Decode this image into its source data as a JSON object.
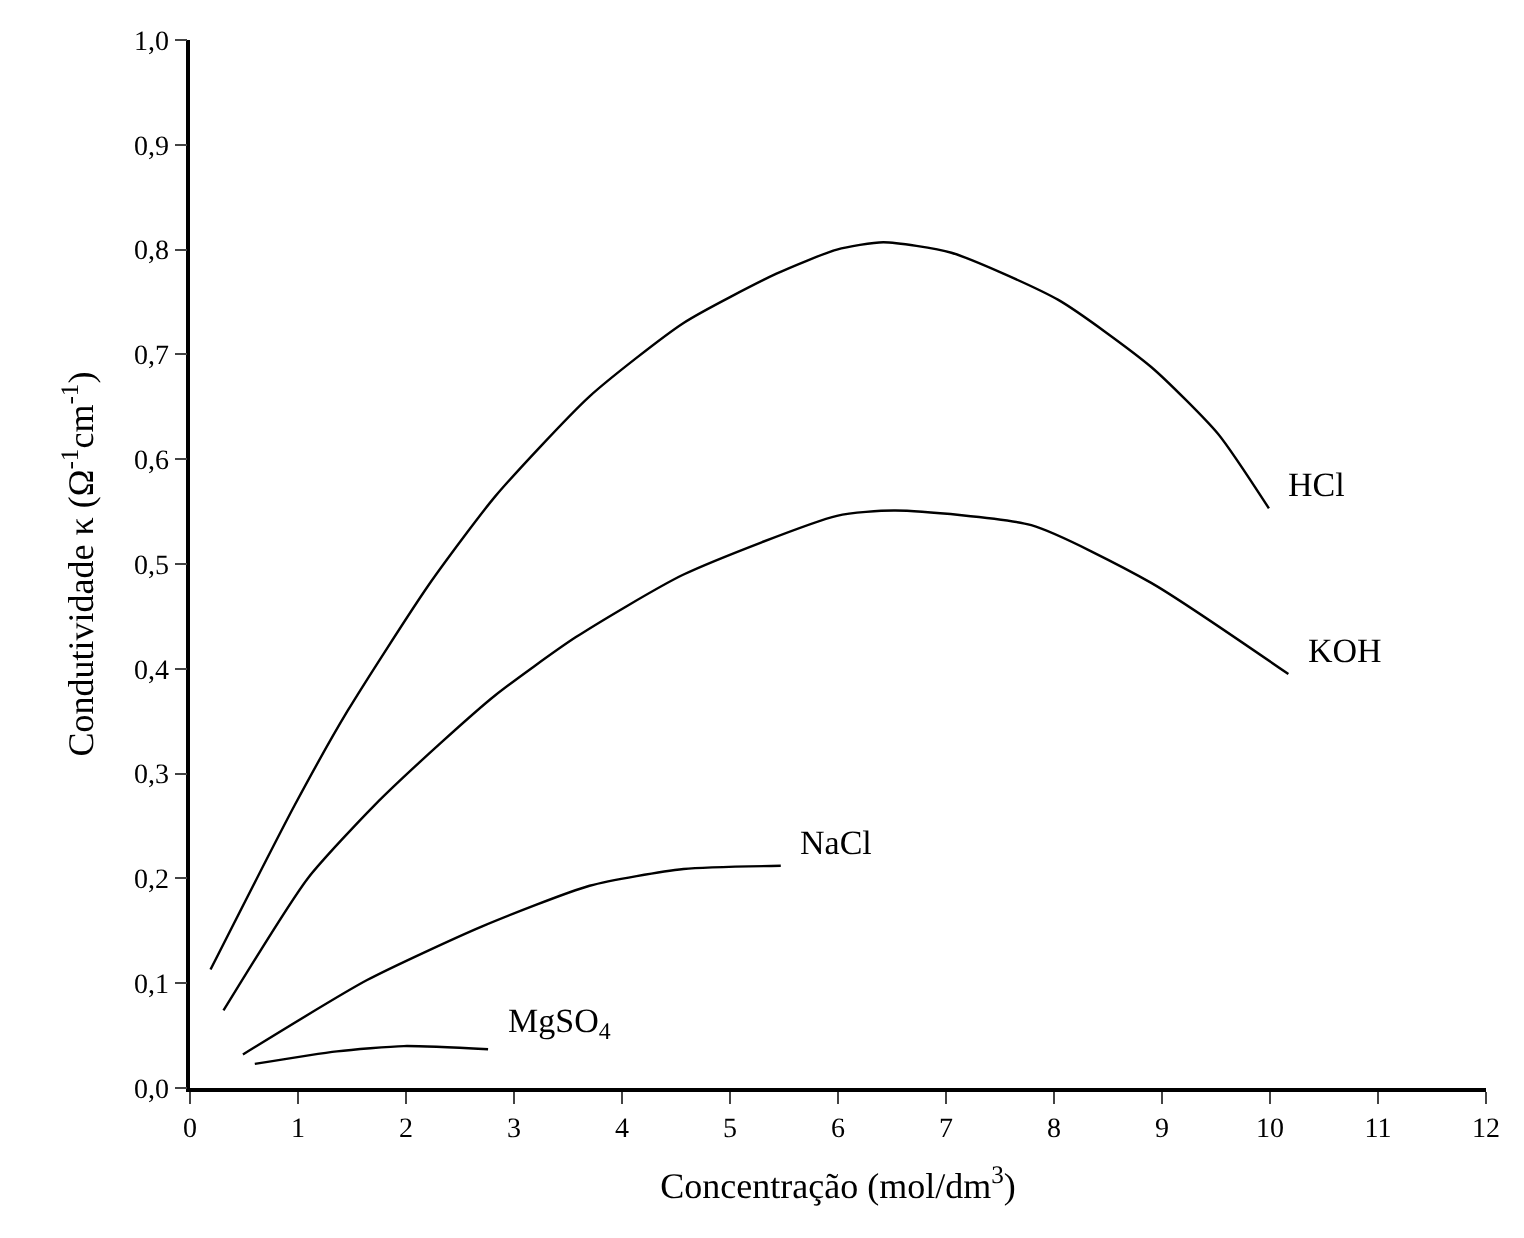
{
  "chart_data": {
    "type": "line",
    "xlabel": "Concentração (mol/dm$^{3}$)",
    "ylabel": "Condutividade κ (Ω$^{-1}$cm$^{-1}$)",
    "xlim": [
      0,
      12
    ],
    "ylim": [
      0,
      1
    ],
    "xticks": [
      0,
      1,
      2,
      3,
      4,
      5,
      6,
      7,
      8,
      9,
      10,
      11,
      12
    ],
    "yticks": [
      {
        "value": 0,
        "label": "0,0"
      },
      {
        "value": 0.1,
        "label": "0,1"
      },
      {
        "value": 0.2,
        "label": "0,2"
      },
      {
        "value": 0.3,
        "label": "0,3"
      },
      {
        "value": 0.4,
        "label": "0,4"
      },
      {
        "value": 0.5,
        "label": "0,5"
      },
      {
        "value": 0.6,
        "label": "0,6"
      },
      {
        "value": 0.7,
        "label": "0,7"
      },
      {
        "value": 0.8,
        "label": "0,8"
      },
      {
        "value": 0.9,
        "label": "0,9"
      },
      {
        "value": 1.0,
        "label": "1,0"
      }
    ],
    "legend": false,
    "marker": "none",
    "line_style": "solid",
    "series": [
      {
        "name": "HCl",
        "color": "#000000",
        "x": [
          0.19,
          0.97,
          1.46,
          2.21,
          2.83,
          3.7,
          4.57,
          5.43,
          5.99,
          6.42,
          7.05,
          8.04,
          8.9,
          9.52,
          9.99
        ],
        "values": [
          0.113,
          0.27,
          0.36,
          0.48,
          0.565,
          0.66,
          0.73,
          0.777,
          0.8,
          0.807,
          0.797,
          0.752,
          0.688,
          0.624,
          0.553
        ]
      },
      {
        "name": "KOH",
        "color": "#000000",
        "x": [
          0.31,
          1.09,
          1.71,
          2.33,
          2.83,
          3.57,
          4.57,
          5.99,
          6.53,
          7.79,
          8.9,
          10.17
        ],
        "values": [
          0.074,
          0.2,
          0.27,
          0.33,
          0.375,
          0.43,
          0.49,
          0.546,
          0.551,
          0.537,
          0.482,
          0.395
        ]
      },
      {
        "name": "NaCl",
        "color": "#000000",
        "x": [
          0.49,
          1.64,
          2.7,
          3.7,
          4.57,
          5.47
        ],
        "values": [
          0.032,
          0.103,
          0.154,
          0.193,
          0.209,
          0.212
        ]
      },
      {
        "name": "MgSO$_{4}$",
        "color": "#000000",
        "x": [
          0.6,
          1.36,
          1.98,
          2.76
        ],
        "values": [
          0.023,
          0.035,
          0.04,
          0.037
        ]
      }
    ]
  }
}
